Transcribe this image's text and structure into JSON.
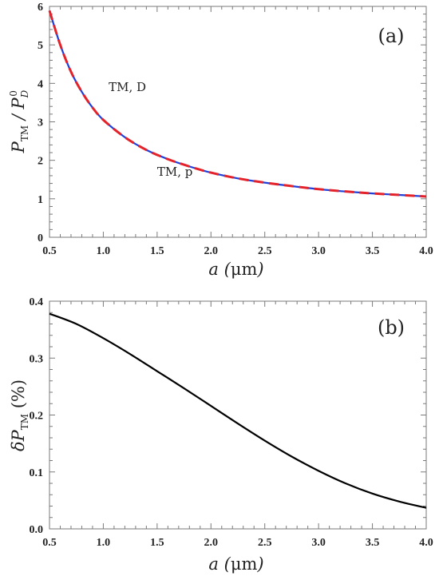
{
  "chart_data": [
    {
      "type": "line",
      "panel_label": "(a)",
      "xlabel": "a (μm)",
      "ylabel": "P_TM / P_D^0",
      "xlim": [
        0.5,
        4.0
      ],
      "ylim": [
        0,
        6
      ],
      "xticks": [
        "0.5",
        "1.0",
        "1.5",
        "2.0",
        "2.5",
        "3.0",
        "3.5",
        "4.0"
      ],
      "yticks": [
        "0",
        "1",
        "2",
        "3",
        "4",
        "5",
        "6"
      ],
      "annotations": [
        {
          "text": "TM, D",
          "x": 1.05,
          "y": 3.8
        },
        {
          "text": "TM, p",
          "x": 1.5,
          "y": 1.6
        }
      ],
      "series": [
        {
          "color": "#1f3fd8",
          "style": "solid",
          "x": [
            0.5,
            0.6,
            0.7,
            0.8,
            0.9,
            1.0,
            1.2,
            1.4,
            1.6,
            1.8,
            2.0,
            2.25,
            2.5,
            2.75,
            3.0,
            3.25,
            3.5,
            3.75,
            4.0
          ],
          "y": [
            5.89,
            5.0,
            4.3,
            3.78,
            3.37,
            3.05,
            2.6,
            2.27,
            2.03,
            1.84,
            1.68,
            1.53,
            1.42,
            1.33,
            1.25,
            1.19,
            1.14,
            1.1,
            1.06
          ]
        },
        {
          "color": "#e4222a",
          "style": "dashed",
          "x": [
            0.5,
            0.6,
            0.7,
            0.8,
            0.9,
            1.0,
            1.2,
            1.4,
            1.6,
            1.8,
            2.0,
            2.25,
            2.5,
            2.75,
            3.0,
            3.25,
            3.5,
            3.75,
            4.0
          ],
          "y": [
            5.89,
            5.0,
            4.3,
            3.78,
            3.37,
            3.05,
            2.6,
            2.27,
            2.03,
            1.84,
            1.68,
            1.53,
            1.42,
            1.33,
            1.25,
            1.19,
            1.14,
            1.1,
            1.06
          ]
        }
      ]
    },
    {
      "type": "line",
      "panel_label": "(b)",
      "xlabel": "a (μm)",
      "ylabel": "δP_TM (%)",
      "xlim": [
        0.5,
        4.0
      ],
      "ylim": [
        0,
        0.4
      ],
      "xticks": [
        "0.5",
        "1.0",
        "1.5",
        "2.0",
        "2.5",
        "3.0",
        "3.5",
        "4.0"
      ],
      "yticks": [
        "0.0",
        "0.1",
        "0.2",
        "0.3",
        "0.4"
      ],
      "series": [
        {
          "color": "#000000",
          "style": "solid",
          "x": [
            0.5,
            0.75,
            1.0,
            1.25,
            1.5,
            1.75,
            2.0,
            2.25,
            2.5,
            2.75,
            3.0,
            3.25,
            3.5,
            3.75,
            4.0
          ],
          "y": [
            0.378,
            0.36,
            0.335,
            0.307,
            0.277,
            0.247,
            0.216,
            0.185,
            0.155,
            0.127,
            0.102,
            0.08,
            0.062,
            0.048,
            0.037
          ]
        }
      ]
    }
  ]
}
